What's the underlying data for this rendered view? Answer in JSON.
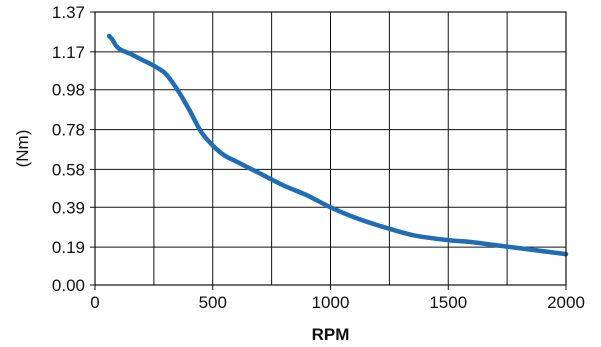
{
  "chart_data": {
    "type": "line",
    "title": "",
    "xlabel": "RPM",
    "ylabel": "(Nm)",
    "xlim": [
      0,
      2000
    ],
    "ylim": [
      0,
      1.37
    ],
    "x_ticks": [
      0,
      500,
      1000,
      1500,
      2000
    ],
    "x_tick_labels": [
      "0",
      "500",
      "1000",
      "1500",
      "2000"
    ],
    "y_ticks": [
      0,
      0.19,
      0.39,
      0.58,
      0.78,
      0.98,
      1.17,
      1.37
    ],
    "y_tick_labels": [
      "0.00",
      "0.19",
      "0.39",
      "0.58",
      "0.78",
      "0.98",
      "1.17",
      "1.37"
    ],
    "grid": true,
    "legend": false,
    "series": [
      {
        "color": "#1f6db3",
        "x": [
          60,
          75,
          90,
          110,
          150,
          200,
          250,
          300,
          350,
          400,
          450,
          500,
          550,
          600,
          700,
          800,
          900,
          1000,
          1100,
          1200,
          1300,
          1350,
          1400,
          1500,
          1600,
          1700,
          1800,
          1900,
          2000
        ],
        "y": [
          1.25,
          1.23,
          1.2,
          1.18,
          1.16,
          1.13,
          1.1,
          1.06,
          0.98,
          0.88,
          0.77,
          0.7,
          0.65,
          0.62,
          0.56,
          0.5,
          0.45,
          0.39,
          0.34,
          0.3,
          0.265,
          0.25,
          0.24,
          0.225,
          0.215,
          0.2,
          0.185,
          0.17,
          0.155
        ]
      }
    ]
  }
}
